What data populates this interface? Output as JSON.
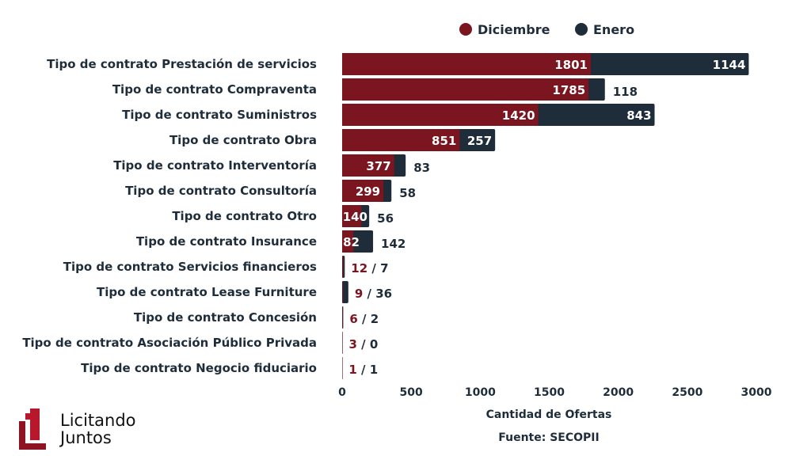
{
  "chart_data": {
    "type": "bar",
    "orientation": "horizontal",
    "stacked": true,
    "categories": [
      "Tipo de contrato Prestación de servicios",
      "Tipo de contrato Compraventa",
      "Tipo de contrato Suministros",
      "Tipo de contrato Obra",
      "Tipo de contrato Interventoría",
      "Tipo de contrato Consultoría",
      "Tipo de contrato Otro",
      "Tipo de contrato Insurance",
      "Tipo de contrato Servicios financieros",
      "Tipo de contrato Lease Furniture",
      "Tipo de contrato Concesión",
      "Tipo de contrato Asociación Público Privada",
      "Tipo de contrato Negocio fiduciario"
    ],
    "series": [
      {
        "name": "Diciembre",
        "color": "#7b1520",
        "values": [
          1801,
          1785,
          1420,
          851,
          377,
          299,
          140,
          82,
          12,
          9,
          6,
          3,
          1
        ]
      },
      {
        "name": "Enero",
        "color": "#1f2d3a",
        "values": [
          1144,
          118,
          843,
          257,
          83,
          58,
          56,
          142,
          7,
          36,
          2,
          0,
          1
        ]
      }
    ],
    "xlabel": "Cantidad de Ofertas",
    "xlim": [
      0,
      3000
    ],
    "xticks": [
      "0",
      "500",
      "1000",
      "1500",
      "2000",
      "2500",
      "3000"
    ],
    "legend": "top",
    "grid": false,
    "source": "Fuente: SECOPII"
  },
  "logo": {
    "line1": "Licitando",
    "line2": "Juntos"
  }
}
